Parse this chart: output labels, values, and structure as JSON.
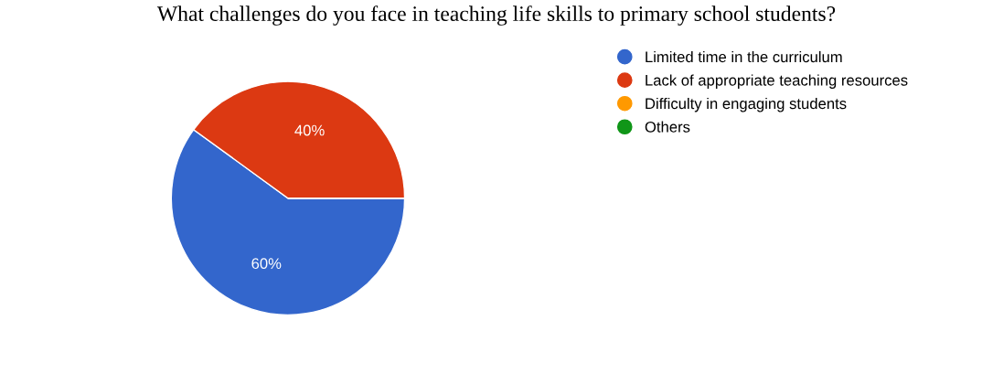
{
  "chart_data": {
    "type": "pie",
    "title": "What challenges do you face in teaching life skills to primary school students?",
    "categories": [
      "Limited time in the curriculum",
      "Lack of appropriate teaching resources",
      "Difficulty in engaging students",
      "Others"
    ],
    "values": [
      60,
      40,
      0,
      0
    ],
    "colors": [
      "#3366cc",
      "#dc3912",
      "#ff9900",
      "#109618"
    ],
    "value_labels": [
      "60%",
      "40%",
      null,
      null
    ],
    "legend": "top right"
  }
}
